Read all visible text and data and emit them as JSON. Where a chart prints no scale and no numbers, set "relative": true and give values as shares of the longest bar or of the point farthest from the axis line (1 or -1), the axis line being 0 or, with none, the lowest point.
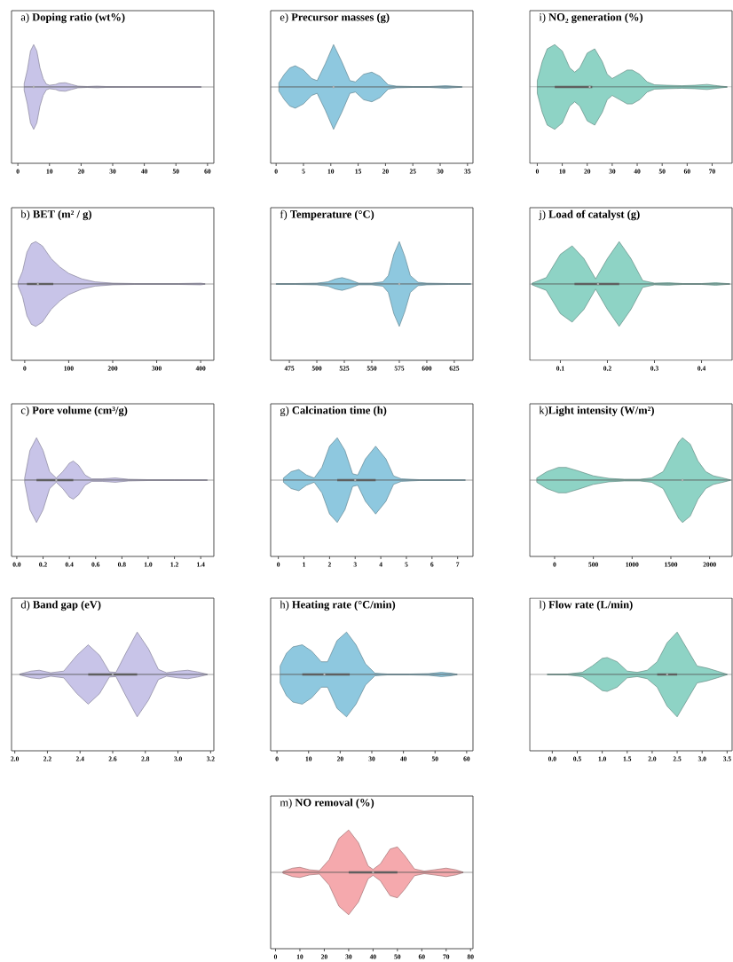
{
  "chart_data": [
    {
      "type": "area",
      "relative": true,
      "title": "a) **Doping ratio (wt%)**",
      "xlim": [
        -2,
        62
      ],
      "xticks": [
        0,
        10,
        20,
        30,
        40,
        50,
        60
      ],
      "series": [
        {
          "type": "area",
          "color": "#c8c4e8",
          "x": [
            2,
            3,
            4,
            5,
            6,
            7,
            8,
            9,
            10,
            12,
            13,
            15,
            17,
            19,
            22,
            25,
            28,
            35,
            45,
            58
          ],
          "values": [
            0.08,
            0.4,
            0.85,
            1,
            0.85,
            0.45,
            0.2,
            0.07,
            0.04,
            0.06,
            0.09,
            0.1,
            0.06,
            0.02,
            0.01,
            0.02,
            0.01,
            0.005,
            0.005,
            0.005
          ]
        },
        {
          "type": "area",
          "color": "#c8c4e8",
          "x": [
            2,
            3,
            4,
            5,
            6,
            7,
            8,
            9,
            10,
            12,
            13,
            15,
            17,
            19,
            22,
            25,
            28,
            35,
            45,
            58
          ],
          "values": [
            -0.08,
            -0.4,
            -0.85,
            -1,
            -0.85,
            -0.45,
            -0.2,
            -0.07,
            -0.04,
            -0.06,
            -0.09,
            -0.1,
            -0.06,
            -0.02,
            -0.01,
            -0.02,
            -0.01,
            -0.005,
            -0.005,
            -0.005
          ]
        },
        {
          "type": "scatter",
          "color": "#c8c8c8",
          "x": [
            5
          ],
          "values": [
            0
          ]
        }
      ]
    },
    {
      "type": "area",
      "relative": true,
      "title": "b) **BET (m² / g)**",
      "xlim": [
        -30,
        430
      ],
      "xticks": [
        0,
        100,
        200,
        300,
        400
      ],
      "series": [
        {
          "type": "area",
          "color": "#c8c4e8",
          "x": [
            -15,
            -5,
            5,
            15,
            25,
            40,
            60,
            80,
            100,
            130,
            160,
            200,
            250,
            300,
            350,
            400,
            410
          ],
          "values": [
            0.05,
            0.3,
            0.75,
            0.95,
            1,
            0.9,
            0.6,
            0.4,
            0.25,
            0.12,
            0.05,
            0.02,
            0.01,
            0.01,
            0.01,
            0.02,
            0.005
          ]
        },
        {
          "type": "area",
          "color": "#c8c4e8",
          "x": [
            -15,
            -5,
            5,
            15,
            25,
            40,
            60,
            80,
            100,
            130,
            160,
            200,
            250,
            300,
            350,
            400,
            410
          ],
          "values": [
            -0.05,
            -0.3,
            -0.75,
            -0.95,
            -1,
            -0.9,
            -0.6,
            -0.4,
            -0.25,
            -0.12,
            -0.05,
            -0.02,
            -0.01,
            -0.01,
            -0.01,
            -0.02,
            -0.005
          ]
        },
        {
          "type": "line",
          "color": "#5f5f5f",
          "x": [
            5,
            65
          ],
          "values": [
            0,
            0
          ]
        },
        {
          "type": "scatter",
          "color": "#c8c8c8",
          "x": [
            30
          ],
          "values": [
            0
          ]
        }
      ]
    },
    {
      "type": "area",
      "relative": true,
      "title": "c) **Pore volume (cm³/g)**",
      "xlim": [
        -0.04,
        1.5
      ],
      "xticks": [
        {
          "value": 0,
          "label": "0.0"
        },
        0.2,
        0.4,
        0.6,
        0.8,
        {
          "value": 1,
          "label": "1.0"
        },
        1.2,
        1.4
      ],
      "series": [
        {
          "type": "area",
          "color": "#c8c4e8",
          "x": [
            0.06,
            0.1,
            0.15,
            0.2,
            0.25,
            0.3,
            0.35,
            0.4,
            0.43,
            0.47,
            0.52,
            0.57,
            0.65,
            0.75,
            0.85,
            1.0,
            1.2,
            1.45
          ],
          "values": [
            0.05,
            0.7,
            1,
            0.7,
            0.2,
            0.05,
            0.2,
            0.4,
            0.45,
            0.35,
            0.12,
            0.03,
            0.03,
            0.05,
            0.02,
            0.01,
            0.01,
            0.005
          ]
        },
        {
          "type": "area",
          "color": "#c8c4e8",
          "x": [
            0.06,
            0.1,
            0.15,
            0.2,
            0.25,
            0.3,
            0.35,
            0.4,
            0.43,
            0.47,
            0.52,
            0.57,
            0.65,
            0.75,
            0.85,
            1.0,
            1.2,
            1.45
          ],
          "values": [
            -0.05,
            -0.7,
            -1,
            -0.7,
            -0.2,
            -0.05,
            -0.2,
            -0.4,
            -0.45,
            -0.35,
            -0.12,
            -0.03,
            -0.03,
            -0.05,
            -0.02,
            -0.01,
            -0.01,
            -0.005
          ]
        },
        {
          "type": "line",
          "color": "#5f5f5f",
          "x": [
            0.15,
            0.43
          ],
          "values": [
            0,
            0
          ]
        },
        {
          "type": "scatter",
          "color": "#c8c8c8",
          "x": [
            0.3
          ],
          "values": [
            0
          ]
        }
      ]
    },
    {
      "type": "area",
      "relative": true,
      "title": "d) **Band gap (eV)**",
      "xlim": [
        1.98,
        3.22
      ],
      "xticks": [
        {
          "value": 2,
          "label": "2.0"
        },
        2.2,
        2.4,
        2.6,
        2.8,
        {
          "value": 3,
          "label": "3.0"
        },
        3.2
      ],
      "series": [
        {
          "type": "area",
          "color": "#c8c4e8",
          "x": [
            2.03,
            2.1,
            2.15,
            2.22,
            2.3,
            2.38,
            2.45,
            2.52,
            2.58,
            2.62,
            2.68,
            2.75,
            2.82,
            2.88,
            2.93,
            3.0,
            3.06,
            3.12,
            3.18
          ],
          "values": [
            0.01,
            0.08,
            0.1,
            0.04,
            0.08,
            0.45,
            0.7,
            0.45,
            0.06,
            0.05,
            0.5,
            1,
            0.6,
            0.12,
            0.04,
            0.08,
            0.1,
            0.06,
            0.005
          ]
        },
        {
          "type": "area",
          "color": "#c8c4e8",
          "x": [
            2.03,
            2.1,
            2.15,
            2.22,
            2.3,
            2.38,
            2.45,
            2.52,
            2.58,
            2.62,
            2.68,
            2.75,
            2.82,
            2.88,
            2.93,
            3.0,
            3.06,
            3.12,
            3.18
          ],
          "values": [
            -0.01,
            -0.08,
            -0.1,
            -0.04,
            -0.08,
            -0.45,
            -0.7,
            -0.45,
            -0.06,
            -0.05,
            -0.5,
            -1,
            -0.6,
            -0.12,
            -0.04,
            -0.08,
            -0.1,
            -0.06,
            -0.005
          ]
        },
        {
          "type": "line",
          "color": "#5f5f5f",
          "x": [
            2.45,
            2.75
          ],
          "values": [
            0,
            0
          ]
        },
        {
          "type": "scatter",
          "color": "#c8c8c8",
          "x": [
            2.6
          ],
          "values": [
            0
          ]
        }
      ]
    },
    {
      "type": "area",
      "relative": true,
      "title": "e) **Precursor masses (g)**",
      "xlim": [
        -1,
        36
      ],
      "xticks": [
        0,
        5,
        10,
        15,
        20,
        25,
        30,
        35
      ],
      "series": [
        {
          "type": "area",
          "color": "#8ec8df",
          "x": [
            0.5,
            1.5,
            2.5,
            3.5,
            5,
            6.5,
            7.5,
            9,
            10.5,
            12,
            13.5,
            14.5,
            16,
            17.5,
            19,
            20.5,
            22,
            25,
            28,
            31,
            34
          ],
          "values": [
            0.1,
            0.3,
            0.45,
            0.5,
            0.4,
            0.2,
            0.15,
            0.55,
            1,
            0.6,
            0.15,
            0.12,
            0.3,
            0.35,
            0.25,
            0.05,
            0.02,
            0.01,
            0.01,
            0.03,
            0.005
          ]
        },
        {
          "type": "area",
          "color": "#8ec8df",
          "x": [
            0.5,
            1.5,
            2.5,
            3.5,
            5,
            6.5,
            7.5,
            9,
            10.5,
            12,
            13.5,
            14.5,
            16,
            17.5,
            19,
            20.5,
            22,
            25,
            28,
            31,
            34
          ],
          "values": [
            -0.1,
            -0.3,
            -0.45,
            -0.5,
            -0.4,
            -0.2,
            -0.15,
            -0.55,
            -1,
            -0.6,
            -0.15,
            -0.12,
            -0.3,
            -0.35,
            -0.25,
            -0.05,
            -0.02,
            -0.01,
            -0.01,
            -0.03,
            -0.005
          ]
        },
        {
          "type": "scatter",
          "color": "#c8c8c8",
          "x": [
            10.5
          ],
          "values": [
            0
          ]
        }
      ]
    },
    {
      "type": "area",
      "relative": true,
      "title": "f) **Temperature (°C)**",
      "xlim": [
        458,
        642
      ],
      "xticks": [
        475,
        500,
        525,
        550,
        575,
        600,
        625
      ],
      "series": [
        {
          "type": "area",
          "color": "#8ec8df",
          "x": [
            463,
            480,
            500,
            510,
            517,
            523,
            530,
            538,
            550,
            560,
            565,
            570,
            575,
            580,
            585,
            592,
            600,
            620,
            640
          ],
          "values": [
            0.01,
            0.01,
            0.02,
            0.05,
            0.12,
            0.15,
            0.1,
            0.02,
            0.02,
            0.05,
            0.2,
            0.7,
            1,
            0.65,
            0.2,
            0.04,
            0.02,
            0.01,
            0.005
          ]
        },
        {
          "type": "area",
          "color": "#8ec8de",
          "x": [
            463,
            480,
            500,
            510,
            517,
            523,
            530,
            538,
            550,
            560,
            565,
            570,
            575,
            580,
            585,
            592,
            600,
            620,
            640
          ],
          "values": [
            -0.01,
            -0.01,
            -0.02,
            -0.05,
            -0.12,
            -0.15,
            -0.1,
            -0.02,
            -0.02,
            -0.05,
            -0.2,
            -0.7,
            -1,
            -0.65,
            -0.2,
            -0.04,
            -0.02,
            -0.01,
            -0.005
          ]
        },
        {
          "type": "scatter",
          "color": "#c8c8c8",
          "x": [
            575
          ],
          "values": [
            0
          ]
        }
      ]
    },
    {
      "type": "area",
      "relative": true,
      "title": "g) **Calcination time (h)**",
      "xlim": [
        -0.3,
        7.6
      ],
      "xticks": [
        0,
        1,
        2,
        3,
        4,
        5,
        6,
        7
      ],
      "series": [
        {
          "type": "area",
          "color": "#8ec8df",
          "x": [
            0.2,
            0.5,
            0.8,
            1.1,
            1.4,
            1.7,
            2.0,
            2.3,
            2.6,
            2.9,
            3.1,
            3.4,
            3.8,
            4.2,
            4.5,
            4.8,
            5.5,
            6.5,
            7.3
          ],
          "values": [
            0.05,
            0.2,
            0.25,
            0.12,
            0.05,
            0.3,
            0.8,
            1,
            0.7,
            0.15,
            0.12,
            0.5,
            0.8,
            0.5,
            0.1,
            0.03,
            0.01,
            0.01,
            0.005
          ]
        },
        {
          "type": "area",
          "color": "#8ec8df",
          "x": [
            0.2,
            0.5,
            0.8,
            1.1,
            1.4,
            1.7,
            2.0,
            2.3,
            2.6,
            2.9,
            3.1,
            3.4,
            3.8,
            4.2,
            4.5,
            4.8,
            5.5,
            6.5,
            7.3
          ],
          "values": [
            -0.05,
            -0.2,
            -0.25,
            -0.12,
            -0.05,
            -0.3,
            -0.8,
            -1,
            -0.7,
            -0.15,
            -0.12,
            -0.5,
            -0.8,
            -0.5,
            -0.1,
            -0.03,
            -0.01,
            -0.01,
            -0.005
          ]
        },
        {
          "type": "line",
          "color": "#5f5f5f",
          "x": [
            2.3,
            3.8
          ],
          "values": [
            0,
            0
          ]
        },
        {
          "type": "scatter",
          "color": "#c8c8c8",
          "x": [
            3
          ],
          "values": [
            0
          ]
        }
      ]
    },
    {
      "type": "area",
      "relative": true,
      "title": "h) **Heating rate (°C/min)**",
      "xlim": [
        -2,
        62
      ],
      "xticks": [
        0,
        10,
        20,
        30,
        40,
        50,
        60
      ],
      "series": [
        {
          "type": "area",
          "color": "#8ec8df",
          "x": [
            1,
            3,
            5,
            8,
            11,
            14,
            16,
            19,
            22,
            25,
            28,
            31,
            35,
            42,
            48,
            52,
            55,
            57
          ],
          "values": [
            0.2,
            0.5,
            0.65,
            0.7,
            0.55,
            0.3,
            0.3,
            0.8,
            1,
            0.7,
            0.25,
            0.03,
            0.01,
            0.01,
            0.02,
            0.05,
            0.03,
            0.005
          ]
        },
        {
          "type": "area",
          "color": "#8ec8df",
          "x": [
            1,
            3,
            5,
            8,
            11,
            14,
            16,
            19,
            22,
            25,
            28,
            31,
            35,
            42,
            48,
            52,
            55,
            57
          ],
          "values": [
            -0.2,
            -0.5,
            -0.65,
            -0.7,
            -0.55,
            -0.3,
            -0.3,
            -0.8,
            -1,
            -0.7,
            -0.25,
            -0.03,
            -0.01,
            -0.01,
            -0.02,
            -0.05,
            -0.03,
            -0.005
          ]
        },
        {
          "type": "line",
          "color": "#5f5f5f",
          "x": [
            8,
            23
          ],
          "values": [
            0,
            0
          ]
        },
        {
          "type": "scatter",
          "color": "#c8c8c8",
          "x": [
            15
          ],
          "values": [
            0
          ]
        }
      ]
    },
    {
      "type": "area",
      "relative": true,
      "title": "i) **NO₂ generation (%)**",
      "xlim": [
        -3,
        78
      ],
      "xticks": [
        0,
        10,
        20,
        30,
        40,
        50,
        60,
        70
      ],
      "series": [
        {
          "type": "area",
          "color": "#8ed3c5",
          "x": [
            0,
            2,
            4,
            7,
            10,
            13,
            15,
            17,
            20,
            23,
            26,
            28,
            30,
            33,
            36,
            38,
            41,
            44,
            47,
            52,
            58,
            63,
            68,
            72,
            76
          ],
          "values": [
            0.15,
            0.6,
            0.9,
            1,
            0.85,
            0.45,
            0.35,
            0.45,
            0.8,
            0.9,
            0.6,
            0.3,
            0.2,
            0.3,
            0.4,
            0.4,
            0.3,
            0.12,
            0.05,
            0.04,
            0.03,
            0.04,
            0.06,
            0.03,
            0.005
          ]
        },
        {
          "type": "area",
          "color": "#8ed3c5",
          "x": [
            0,
            2,
            4,
            7,
            10,
            13,
            15,
            17,
            20,
            23,
            26,
            28,
            30,
            33,
            36,
            38,
            41,
            44,
            47,
            52,
            58,
            63,
            68,
            72,
            76
          ],
          "values": [
            -0.15,
            -0.6,
            -0.9,
            -1,
            -0.85,
            -0.45,
            -0.35,
            -0.45,
            -0.8,
            -0.9,
            -0.6,
            -0.3,
            -0.2,
            -0.3,
            -0.4,
            -0.4,
            -0.3,
            -0.12,
            -0.05,
            -0.04,
            -0.03,
            -0.04,
            -0.06,
            -0.03,
            -0.005
          ]
        },
        {
          "type": "line",
          "color": "#5f5f5f",
          "x": [
            7,
            22
          ],
          "values": [
            0,
            0
          ]
        },
        {
          "type": "scatter",
          "color": "#c8c8c8",
          "x": [
            21
          ],
          "values": [
            0
          ]
        }
      ]
    },
    {
      "type": "area",
      "relative": true,
      "title": "j) **Load of catalyst (g)**",
      "xlim": [
        0.035,
        0.465
      ],
      "xticks": [
        0.1,
        0.2,
        0.3,
        0.4
      ],
      "series": [
        {
          "type": "area",
          "color": "#8ed3c5",
          "x": [
            0.04,
            0.07,
            0.1,
            0.125,
            0.15,
            0.175,
            0.2,
            0.225,
            0.25,
            0.275,
            0.3,
            0.33,
            0.36,
            0.4,
            0.43,
            0.46
          ],
          "values": [
            0.02,
            0.15,
            0.7,
            0.9,
            0.6,
            0.12,
            0.6,
            1,
            0.6,
            0.08,
            0.02,
            0.03,
            0.01,
            0.01,
            0.03,
            0.005
          ]
        },
        {
          "type": "area",
          "color": "#8ed3c5",
          "x": [
            0.04,
            0.07,
            0.1,
            0.125,
            0.15,
            0.175,
            0.2,
            0.225,
            0.25,
            0.275,
            0.3,
            0.33,
            0.36,
            0.4,
            0.43,
            0.46
          ],
          "values": [
            -0.02,
            -0.15,
            -0.7,
            -0.9,
            -0.6,
            -0.12,
            -0.6,
            -1,
            -0.6,
            -0.08,
            -0.02,
            -0.03,
            -0.01,
            -0.01,
            -0.03,
            -0.005
          ]
        },
        {
          "type": "line",
          "color": "#5f5f5f",
          "x": [
            0.13,
            0.225
          ],
          "values": [
            0,
            0
          ]
        },
        {
          "type": "scatter",
          "color": "#c8c8c8",
          "x": [
            0.18
          ],
          "values": [
            0
          ]
        }
      ]
    },
    {
      "type": "area",
      "relative": true,
      "title": "k)**Light intensity (W/m²)**",
      "xlim": [
        -320,
        2290
      ],
      "xticks": [
        0,
        500,
        1000,
        1500,
        2000
      ],
      "series": [
        {
          "type": "area",
          "color": "#8ed3c5",
          "x": [
            -230,
            -100,
            50,
            150,
            300,
            500,
            700,
            900,
            1100,
            1250,
            1400,
            1500,
            1600,
            1650,
            1750,
            1850,
            1950,
            2050,
            2150,
            2270
          ],
          "values": [
            0.05,
            0.2,
            0.3,
            0.3,
            0.22,
            0.1,
            0.04,
            0.02,
            0.02,
            0.05,
            0.2,
            0.55,
            0.9,
            1,
            0.85,
            0.45,
            0.2,
            0.1,
            0.06,
            0.005
          ]
        },
        {
          "type": "area",
          "color": "#8ed3c5",
          "x": [
            -230,
            -100,
            50,
            150,
            300,
            500,
            700,
            900,
            1100,
            1250,
            1400,
            1500,
            1600,
            1650,
            1750,
            1850,
            1950,
            2050,
            2150,
            2270
          ],
          "values": [
            -0.05,
            -0.2,
            -0.3,
            -0.3,
            -0.22,
            -0.1,
            -0.04,
            -0.02,
            -0.02,
            -0.05,
            -0.2,
            -0.55,
            -0.9,
            -1,
            -0.85,
            -0.45,
            -0.2,
            -0.1,
            -0.06,
            -0.005
          ]
        },
        {
          "type": "scatter",
          "color": "#c8c8c8",
          "x": [
            1650
          ],
          "values": [
            0
          ]
        }
      ]
    },
    {
      "type": "area",
      "relative": true,
      "title": "l) **Flow rate (L/min)**",
      "xlim": [
        -0.45,
        3.6
      ],
      "xticks": [
        {
          "value": 0,
          "label": "0.0"
        },
        0.5,
        {
          "value": 1,
          "label": "1.0"
        },
        1.5,
        {
          "value": 2,
          "label": "2.0"
        },
        2.5,
        {
          "value": 3,
          "label": "3.0"
        },
        3.5
      ],
      "series": [
        {
          "type": "area",
          "color": "#8ed3c5",
          "x": [
            -0.1,
            0.3,
            0.6,
            0.8,
            1.0,
            1.1,
            1.3,
            1.5,
            1.7,
            1.9,
            2.1,
            2.3,
            2.5,
            2.7,
            2.9,
            3.1,
            3.3,
            3.5
          ],
          "values": [
            0.005,
            0.01,
            0.05,
            0.2,
            0.38,
            0.4,
            0.3,
            0.08,
            0.05,
            0.1,
            0.3,
            0.75,
            1,
            0.6,
            0.2,
            0.15,
            0.08,
            0.005
          ]
        },
        {
          "type": "area",
          "color": "#8ed3c5",
          "x": [
            -0.1,
            0.3,
            0.6,
            0.8,
            1.0,
            1.1,
            1.3,
            1.5,
            1.7,
            1.9,
            2.1,
            2.3,
            2.5,
            2.7,
            2.9,
            3.1,
            3.3,
            3.5
          ],
          "values": [
            -0.005,
            -0.01,
            -0.05,
            -0.2,
            -0.38,
            -0.4,
            -0.3,
            -0.08,
            -0.05,
            -0.1,
            -0.3,
            -0.75,
            -1,
            -0.6,
            -0.2,
            -0.15,
            -0.08,
            -0.005
          ]
        },
        {
          "type": "line",
          "color": "#5f5f5f",
          "x": [
            2.1,
            2.5
          ],
          "values": [
            0,
            0
          ]
        },
        {
          "type": "scatter",
          "color": "#c8c8c8",
          "x": [
            2.3
          ],
          "values": [
            0
          ]
        }
      ]
    },
    {
      "type": "area",
      "relative": true,
      "title": "m) **NO removal (%)**",
      "xlim": [
        -2,
        81
      ],
      "xticks": [
        0,
        10,
        20,
        30,
        40,
        50,
        60,
        70,
        80
      ],
      "series": [
        {
          "type": "area",
          "color": "#f5a9ad",
          "x": [
            3,
            7,
            10,
            14,
            18,
            22,
            26,
            30,
            34,
            38,
            40,
            43,
            47,
            50,
            53,
            57,
            61,
            65,
            70,
            74,
            77
          ],
          "values": [
            0.02,
            0.1,
            0.12,
            0.06,
            0.04,
            0.3,
            0.8,
            1,
            0.7,
            0.15,
            0.07,
            0.2,
            0.55,
            0.6,
            0.4,
            0.08,
            0.03,
            0.06,
            0.1,
            0.06,
            0.005
          ]
        },
        {
          "type": "area",
          "color": "#f5a9ad",
          "x": [
            3,
            7,
            10,
            14,
            18,
            22,
            26,
            30,
            34,
            38,
            40,
            43,
            47,
            50,
            53,
            57,
            61,
            65,
            70,
            74,
            77
          ],
          "values": [
            -0.02,
            -0.1,
            -0.12,
            -0.06,
            -0.04,
            -0.3,
            -0.8,
            -1,
            -0.7,
            -0.15,
            -0.07,
            -0.2,
            -0.55,
            -0.6,
            -0.4,
            -0.08,
            -0.03,
            -0.06,
            -0.1,
            -0.06,
            -0.005
          ]
        },
        {
          "type": "line",
          "color": "#5f5f5f",
          "x": [
            30,
            50
          ],
          "values": [
            0,
            0
          ]
        },
        {
          "type": "scatter",
          "color": "#c8c8c8",
          "x": [
            40
          ],
          "values": [
            0
          ]
        }
      ]
    }
  ]
}
